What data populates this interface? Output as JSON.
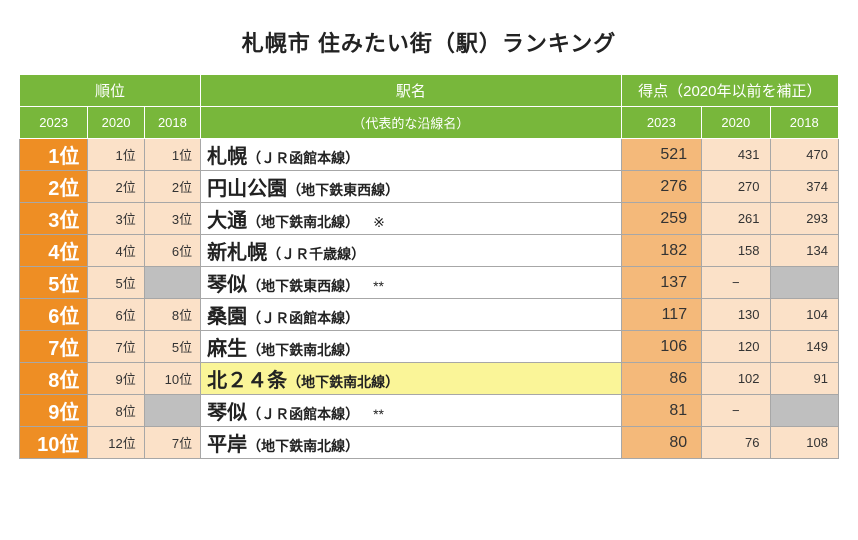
{
  "title": "札幌市 住みたい街（駅）ランキング",
  "header": {
    "rank_group": "順位",
    "station_top": "駅名",
    "station_sub": "（代表的な沿線名）",
    "score_group": "得点（2020年以前を補正）",
    "y2023": "2023",
    "y2020": "2020",
    "y2018": "2018"
  },
  "colors": {
    "header_bg": "#78b73b",
    "header_fg": "#ffffff",
    "rank2023_bg": "#ee8e24",
    "rank2023_fg": "#ffffff",
    "rank_old_bg": "#fbe1c8",
    "score2023_bg": "#f4b97a",
    "score_old_bg": "#fbe1c8",
    "blank_bg": "#bfbfbf",
    "highlight_bg": "#faf598",
    "border": "#a7a7a7",
    "text": "#222222"
  },
  "rows": [
    {
      "rank2023": "1位",
      "rank2020": "1位",
      "rank2018": "1位",
      "name": "札幌",
      "line": "（ＪＲ函館本線）",
      "note": "",
      "score2023": "521",
      "score2020": "431",
      "score2018": "470",
      "highlight": false,
      "blank2020": false,
      "blank2018": false
    },
    {
      "rank2023": "2位",
      "rank2020": "2位",
      "rank2018": "2位",
      "name": "円山公園",
      "line": "（地下鉄東西線）",
      "note": "",
      "score2023": "276",
      "score2020": "270",
      "score2018": "374",
      "highlight": false,
      "blank2020": false,
      "blank2018": false
    },
    {
      "rank2023": "3位",
      "rank2020": "3位",
      "rank2018": "3位",
      "name": "大通",
      "line": "（地下鉄南北線）",
      "note": "※",
      "score2023": "259",
      "score2020": "261",
      "score2018": "293",
      "highlight": false,
      "blank2020": false,
      "blank2018": false
    },
    {
      "rank2023": "4位",
      "rank2020": "4位",
      "rank2018": "6位",
      "name": "新札幌",
      "line": "（ＪＲ千歳線）",
      "note": "",
      "score2023": "182",
      "score2020": "158",
      "score2018": "134",
      "highlight": false,
      "blank2020": false,
      "blank2018": false
    },
    {
      "rank2023": "5位",
      "rank2020": "5位",
      "rank2018": "",
      "name": "琴似",
      "line": "（地下鉄東西線）",
      "note": "**",
      "score2023": "137",
      "score2020": "−",
      "score2018": "",
      "highlight": false,
      "blank2020": false,
      "blank2018": true
    },
    {
      "rank2023": "6位",
      "rank2020": "6位",
      "rank2018": "8位",
      "name": "桑園",
      "line": "（ＪＲ函館本線）",
      "note": "",
      "score2023": "117",
      "score2020": "130",
      "score2018": "104",
      "highlight": false,
      "blank2020": false,
      "blank2018": false
    },
    {
      "rank2023": "7位",
      "rank2020": "7位",
      "rank2018": "5位",
      "name": "麻生",
      "line": "（地下鉄南北線）",
      "note": "",
      "score2023": "106",
      "score2020": "120",
      "score2018": "149",
      "highlight": false,
      "blank2020": false,
      "blank2018": false
    },
    {
      "rank2023": "8位",
      "rank2020": "9位",
      "rank2018": "10位",
      "name": "北２４条",
      "line": "（地下鉄南北線）",
      "note": "",
      "score2023": "86",
      "score2020": "102",
      "score2018": "91",
      "highlight": true,
      "blank2020": false,
      "blank2018": false
    },
    {
      "rank2023": "9位",
      "rank2020": "8位",
      "rank2018": "",
      "name": "琴似",
      "line": "（ＪＲ函館本線）",
      "note": "**",
      "score2023": "81",
      "score2020": "−",
      "score2018": "",
      "highlight": false,
      "blank2020": false,
      "blank2018": true
    },
    {
      "rank2023": "10位",
      "rank2020": "12位",
      "rank2018": "7位",
      "name": "平岸",
      "line": "（地下鉄南北線）",
      "note": "",
      "score2023": "80",
      "score2020": "76",
      "score2018": "108",
      "highlight": false,
      "blank2020": false,
      "blank2018": false
    }
  ]
}
